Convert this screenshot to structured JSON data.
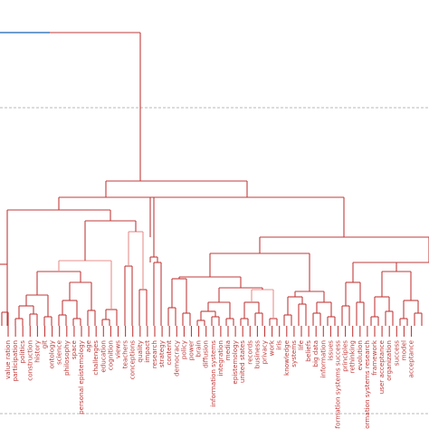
{
  "colors": {
    "main": "#c23b3b",
    "root": "#3b7bbf",
    "light": "#e8908c",
    "cut": "#b8b8b8"
  },
  "labels": [
    "value ration",
    "participation",
    "politics",
    "construction",
    "history",
    "git",
    "ontology",
    "science",
    "philosophy",
    "space",
    "personal epistemology",
    "age",
    "challenges",
    "education",
    "cognition",
    "views",
    "teachers",
    "conceptions",
    "quality",
    "impact",
    "research",
    "strategy",
    "content",
    "democracy",
    "policy",
    "power",
    "brain",
    "diffusion",
    "information systems",
    "integration",
    "media",
    "epistemology",
    "united states",
    "records",
    "business",
    "privacy",
    "work",
    "iris",
    "knowledge",
    "systems",
    "life",
    "beliefs",
    "big data",
    "information",
    "issues",
    "information systems success",
    "principles",
    "rethinking",
    "evolution",
    "information systems research",
    "framework",
    "user acceptance",
    "organization",
    "success",
    "model",
    "acceptance"
  ]
}
